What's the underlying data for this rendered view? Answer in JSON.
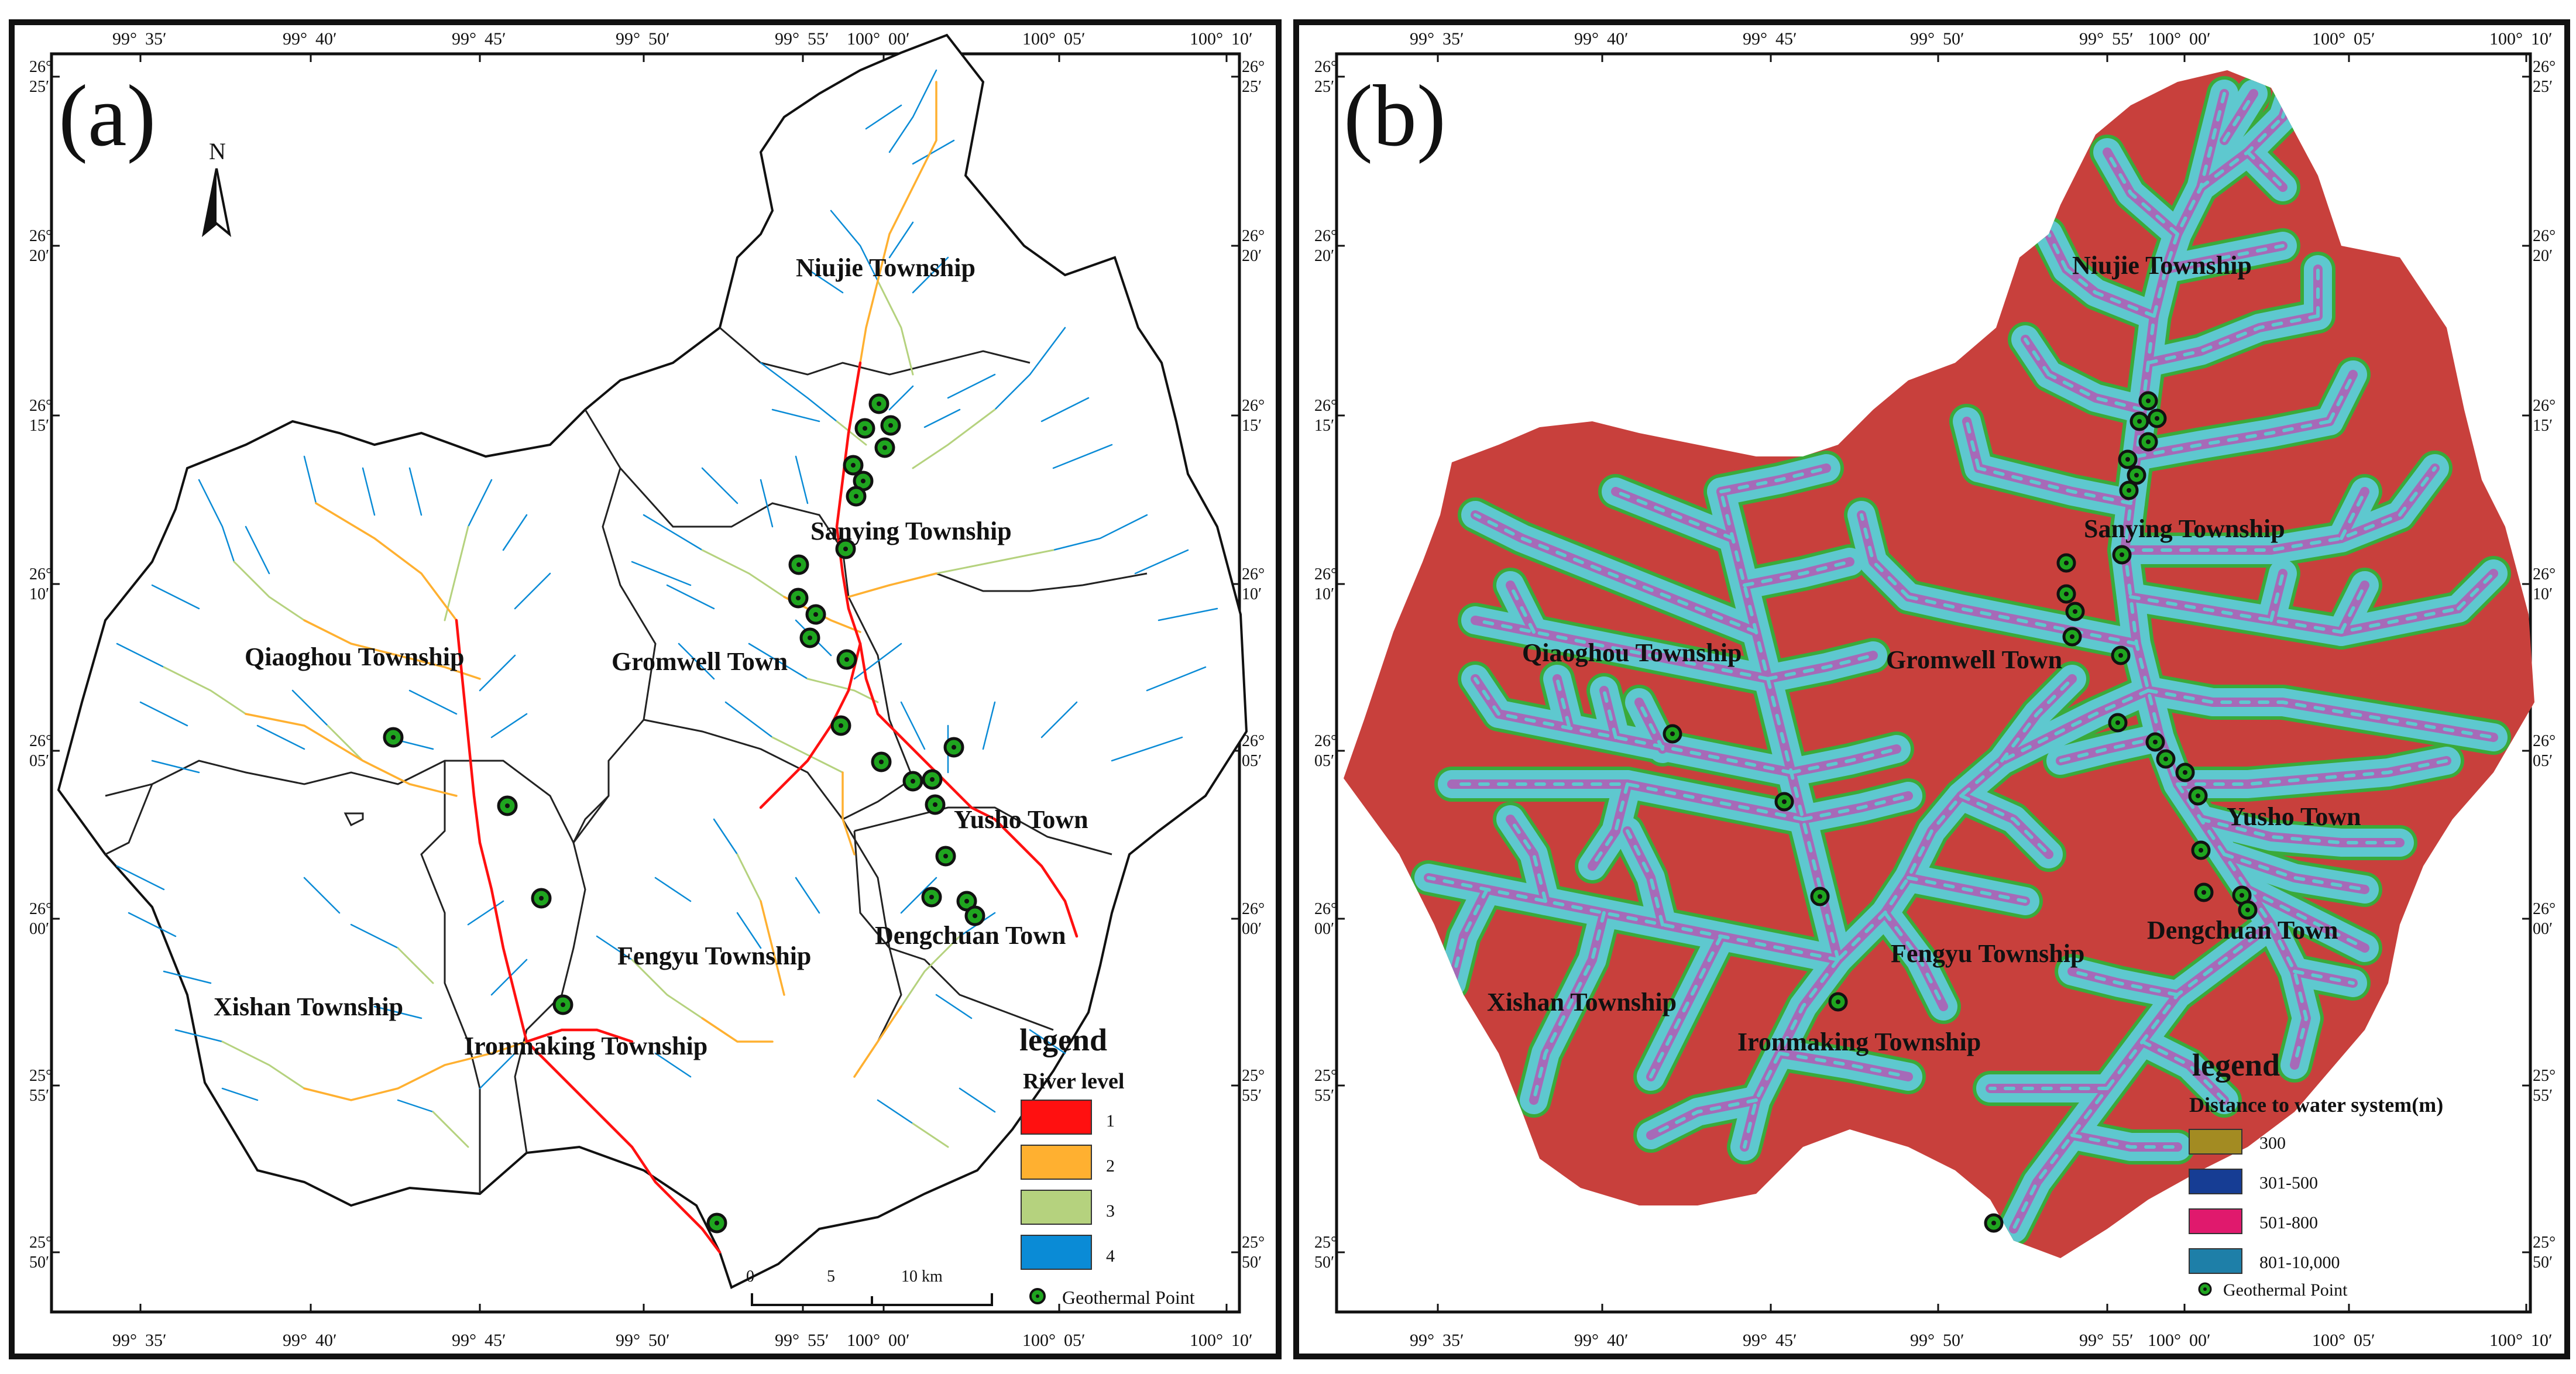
{
  "map_a": {
    "panel_label": "(a)",
    "north_label": "N",
    "town_labels": [
      "Niujie Township",
      "Sanying Township",
      "Qiaoghou Township",
      "Gromwell Town",
      "Yusho Town",
      "Dengchuan Town",
      "Fengyu Township",
      "Xishan Township",
      "Ironmaking Township"
    ],
    "legend_title": "legend",
    "legend_subtitle": "River level",
    "legend_items": [
      {
        "label": "1",
        "color": "#ff1010"
      },
      {
        "label": "2",
        "color": "#ffb030"
      },
      {
        "label": "3",
        "color": "#b5d27e"
      },
      {
        "label": "4",
        "color": "#0a8bd6"
      }
    ],
    "point_label": "Geothermal Point",
    "scale": {
      "t0": "0",
      "t1": "5",
      "t2": "10 km"
    }
  },
  "map_b": {
    "panel_label": "(b)",
    "town_labels": [
      "Niujie Township",
      "Sanying Township",
      "Qiaoghou Township",
      "Gromwell Town",
      "Yusho Town",
      "Dengchuan Town",
      "Fengyu Township",
      "Xishan Township",
      "Ironmaking Township"
    ],
    "legend_title": "legend",
    "legend_subtitle": "Distance to water system(m)",
    "legend_items": [
      {
        "label": "300",
        "color": "#a38b22"
      },
      {
        "label": "301-500",
        "color": "#163d94"
      },
      {
        "label": "501-800",
        "color": "#e0196d"
      },
      {
        "label": "801-10,000",
        "color": "#1e7fa8"
      }
    ],
    "point_label": "Geothermal Point"
  },
  "graticule": {
    "lon": [
      {
        "deg": "99°",
        "min": "35′"
      },
      {
        "deg": "99°",
        "min": "40′"
      },
      {
        "deg": "99°",
        "min": "45′"
      },
      {
        "deg": "99°",
        "min": "50′"
      },
      {
        "deg": "99°",
        "min": "55′"
      },
      {
        "deg": "100°",
        "min": "00′"
      },
      {
        "deg": "100°",
        "min": "05′"
      },
      {
        "deg": "100°",
        "min": "10′"
      }
    ],
    "lat": [
      {
        "deg": "26°",
        "min": "25′"
      },
      {
        "deg": "26°",
        "min": "20′"
      },
      {
        "deg": "26°",
        "min": "15′"
      },
      {
        "deg": "26°",
        "min": "10′"
      },
      {
        "deg": "26°",
        "min": "05′"
      },
      {
        "deg": "26°",
        "min": "00′"
      },
      {
        "deg": "25°",
        "min": "55′"
      },
      {
        "deg": "25°",
        "min": "50′"
      }
    ]
  },
  "colors": {
    "land_b": "#c8403c",
    "buffer_b": "#5ec8cf",
    "buffer_edge_b": "#3aaa3a",
    "channel_b": "#a66ab8",
    "point_fill": "#1fa51f"
  }
}
